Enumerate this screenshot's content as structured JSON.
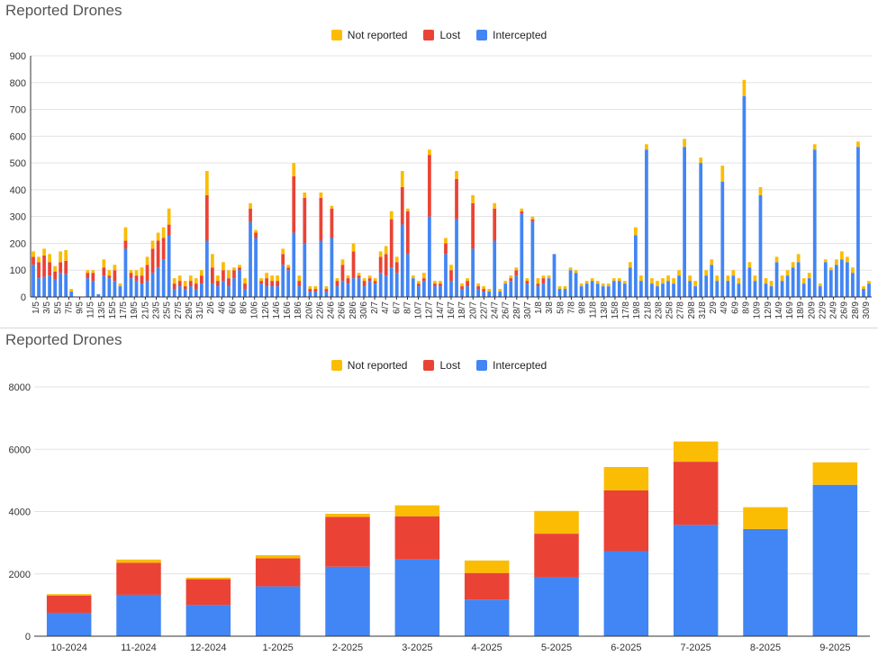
{
  "colors": {
    "not_reported": "#FBBC04",
    "lost": "#EA4335",
    "intercepted": "#4285F4",
    "grid": "#e3e3e3",
    "axis": "#333333"
  },
  "chart_data": [
    {
      "type": "bar",
      "stacked": true,
      "title": "Reported Drones",
      "legend": [
        "Not reported",
        "Lost",
        "Intercepted"
      ],
      "legend_position": "top",
      "ylim": [
        0,
        900
      ],
      "yticks": [
        "0",
        "100",
        "200",
        "300",
        "400",
        "500",
        "600",
        "700",
        "800",
        "900"
      ],
      "tick_labels": [
        "1/5",
        "3/5",
        "5/5",
        "7/5",
        "9/5",
        "11/5",
        "13/5",
        "15/5",
        "17/5",
        "19/5",
        "21/5",
        "23/5",
        "25/5",
        "27/5",
        "29/5",
        "31/5",
        "2/6",
        "4/6",
        "6/6",
        "8/6",
        "10/6",
        "12/6",
        "14/6",
        "16/6",
        "18/6",
        "20/6",
        "22/6",
        "24/6",
        "26/6",
        "28/6",
        "30/6",
        "2/7",
        "4/7",
        "6/7",
        "8/7",
        "10/7",
        "12/7",
        "14/7",
        "16/7",
        "18/7",
        "20/7",
        "22/7",
        "24/7",
        "26/7",
        "28/7",
        "30/7",
        "1/8",
        "3/8",
        "5/8",
        "7/8",
        "9/8",
        "11/8",
        "13/8",
        "15/8",
        "17/8",
        "19/8",
        "21/8",
        "23/8",
        "25/8",
        "27/8",
        "29/8",
        "31/8",
        "2/9",
        "4/9",
        "6/9",
        "8/9",
        "10/9",
        "12/9",
        "14/9",
        "16/9",
        "18/9",
        "20/9",
        "22/9",
        "24/9",
        "26/9",
        "28/9",
        "30/9"
      ],
      "series": [
        {
          "name": "Intercepted",
          "values": [
            120,
            70,
            75,
            80,
            65,
            90,
            85,
            20,
            0,
            0,
            70,
            60,
            10,
            80,
            70,
            60,
            40,
            180,
            70,
            60,
            50,
            60,
            90,
            110,
            140,
            230,
            30,
            40,
            30,
            40,
            30,
            50,
            210,
            50,
            40,
            60,
            40,
            70,
            100,
            30,
            280,
            220,
            50,
            40,
            40,
            40,
            120,
            100,
            240,
            40,
            200,
            20,
            20,
            210,
            20,
            220,
            40,
            60,
            50,
            70,
            70,
            40,
            60,
            50,
            90,
            80,
            110,
            90,
            270,
            160,
            70,
            40,
            60,
            300,
            40,
            40,
            160,
            60,
            290,
            30,
            40,
            180,
            30,
            20,
            20,
            210,
            20,
            50,
            60,
            80,
            310,
            50,
            280,
            40,
            50,
            70,
            160,
            30,
            30,
            100,
            90,
            40,
            50,
            60,
            50,
            40,
            40,
            60,
            60,
            50,
            110,
            230,
            60,
            550,
            50,
            40,
            50,
            60,
            50,
            80,
            560,
            60,
            40,
            500,
            80,
            120,
            60,
            430,
            60,
            80,
            50,
            750,
            110,
            60,
            380,
            50,
            40,
            130,
            60,
            80,
            110,
            130,
            50,
            70,
            550,
            40,
            130,
            100,
            120,
            140,
            130,
            90,
            560,
            30,
            50
          ]
        },
        {
          "name": "Lost",
          "values": [
            30,
            60,
            80,
            50,
            30,
            40,
            50,
            0,
            0,
            0,
            20,
            30,
            0,
            30,
            10,
            40,
            0,
            30,
            20,
            20,
            30,
            60,
            90,
            100,
            80,
            40,
            20,
            20,
            10,
            20,
            20,
            30,
            170,
            60,
            20,
            40,
            30,
            30,
            10,
            20,
            50,
            20,
            10,
            30,
            20,
            20,
            40,
            10,
            210,
            20,
            170,
            10,
            10,
            160,
            10,
            110,
            20,
            60,
            20,
            100,
            10,
            20,
            10,
            10,
            60,
            80,
            180,
            40,
            140,
            160,
            0,
            10,
            10,
            230,
            10,
            10,
            40,
            40,
            150,
            10,
            20,
            170,
            10,
            10,
            0,
            120,
            0,
            0,
            10,
            20,
            10,
            10,
            10,
            10,
            20,
            0,
            0,
            0,
            0,
            0,
            0,
            0,
            0,
            0,
            0,
            0,
            0,
            0,
            0,
            0,
            0,
            0,
            0,
            0,
            0,
            0,
            0,
            0,
            0,
            0,
            0,
            0,
            0,
            0,
            0,
            0,
            0,
            0,
            0,
            0,
            0,
            0,
            0,
            0,
            0,
            0,
            0,
            0,
            0,
            0,
            0,
            0,
            0,
            0,
            0,
            0,
            0,
            0,
            0,
            0,
            0,
            0,
            0,
            0,
            0
          ]
        },
        {
          "name": "Not reported",
          "values": [
            20,
            20,
            25,
            30,
            20,
            40,
            40,
            10,
            0,
            0,
            10,
            10,
            0,
            30,
            20,
            20,
            10,
            50,
            10,
            20,
            30,
            30,
            30,
            30,
            40,
            60,
            20,
            20,
            20,
            20,
            20,
            20,
            90,
            50,
            20,
            30,
            30,
            10,
            10,
            20,
            20,
            10,
            10,
            20,
            20,
            20,
            20,
            10,
            50,
            20,
            20,
            10,
            10,
            20,
            10,
            10,
            10,
            20,
            10,
            30,
            10,
            10,
            10,
            10,
            20,
            30,
            30,
            20,
            60,
            10,
            10,
            10,
            20,
            20,
            10,
            10,
            20,
            20,
            30,
            10,
            10,
            30,
            10,
            10,
            10,
            20,
            10,
            10,
            10,
            10,
            10,
            10,
            10,
            20,
            10,
            10,
            0,
            10,
            10,
            10,
            10,
            10,
            10,
            10,
            10,
            10,
            10,
            10,
            10,
            10,
            20,
            30,
            20,
            20,
            20,
            20,
            20,
            20,
            20,
            20,
            30,
            20,
            20,
            20,
            20,
            20,
            20,
            60,
            20,
            20,
            20,
            60,
            20,
            20,
            30,
            20,
            20,
            20,
            20,
            20,
            20,
            30,
            20,
            20,
            20,
            10,
            10,
            10,
            20,
            30,
            20,
            20,
            20,
            10,
            10
          ]
        }
      ]
    },
    {
      "type": "bar",
      "stacked": true,
      "title": "Reported Drones",
      "legend": [
        "Not reported",
        "Lost",
        "Intercepted"
      ],
      "legend_position": "top",
      "ylim": [
        0,
        8000
      ],
      "yticks": [
        "0",
        "2000",
        "4000",
        "6000",
        "8000"
      ],
      "categories": [
        "10-2024",
        "11-2024",
        "12-2024",
        "1-2025",
        "2-2025",
        "3-2025",
        "4-2025",
        "5-2025",
        "6-2025",
        "7-2025",
        "8-2025",
        "9-2025"
      ],
      "series": [
        {
          "name": "Intercepted",
          "values": [
            750,
            1330,
            1000,
            1600,
            2230,
            2460,
            1180,
            1890,
            2730,
            3570,
            3440,
            4860
          ]
        },
        {
          "name": "Lost",
          "values": [
            550,
            1030,
            830,
            900,
            1600,
            1390,
            850,
            1400,
            1950,
            2030,
            0,
            0
          ]
        },
        {
          "name": "Not reported",
          "values": [
            50,
            100,
            50,
            100,
            100,
            350,
            400,
            730,
            750,
            650,
            700,
            720
          ]
        }
      ]
    }
  ]
}
